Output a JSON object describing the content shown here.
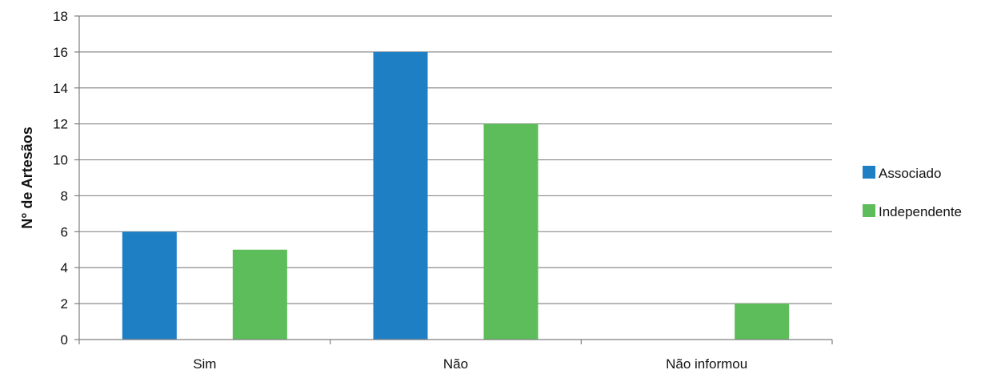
{
  "chart_data": {
    "type": "bar",
    "title": "",
    "xlabel": "",
    "ylabel": "N° de Artesãos",
    "categories": [
      "Sim",
      "Não",
      "Não informou"
    ],
    "series": [
      {
        "name": "Associado",
        "values": [
          6,
          16,
          0
        ],
        "color": "#1f7fc4"
      },
      {
        "name": "Independente",
        "values": [
          5,
          12,
          2
        ],
        "color": "#5cbd5a"
      }
    ],
    "ylim": [
      0,
      18
    ],
    "yticks": [
      0,
      2,
      4,
      6,
      8,
      10,
      12,
      14,
      16,
      18
    ],
    "grid": true,
    "legend": "right"
  },
  "colors": {
    "grid": "#8c8c8c",
    "axis": "#7f7f7f",
    "text": "#111111"
  }
}
